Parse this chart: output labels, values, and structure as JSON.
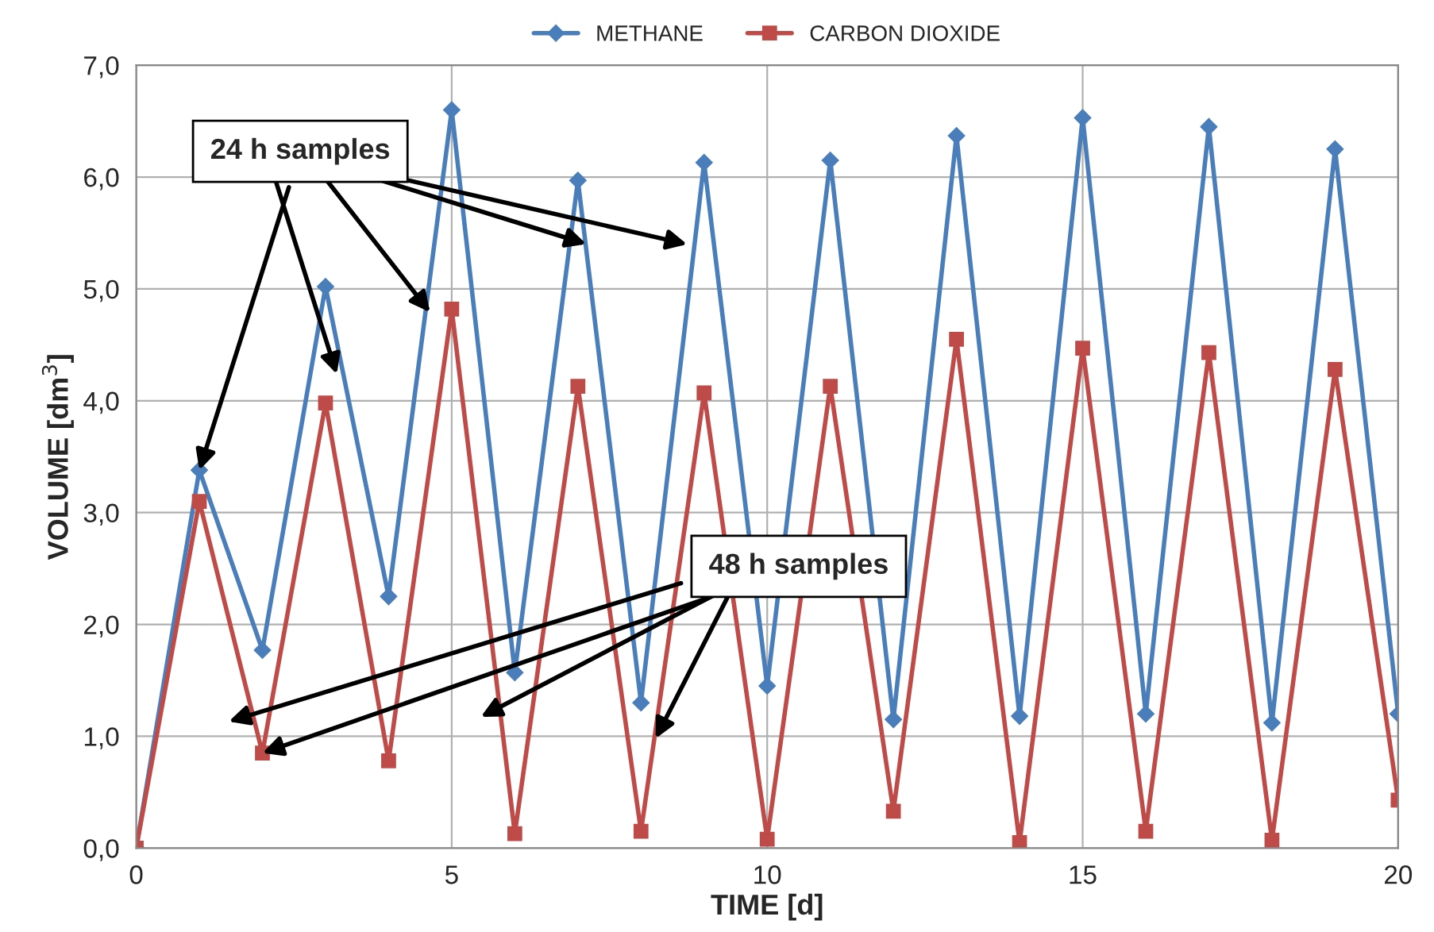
{
  "chart_data": {
    "type": "line",
    "xlabel": "TIME [d]",
    "ylabel": "VOLUME [dm$^{3}$]",
    "x": [
      0,
      1,
      2,
      3,
      4,
      5,
      6,
      7,
      8,
      9,
      10,
      11,
      12,
      13,
      14,
      15,
      16,
      17,
      18,
      19,
      20
    ],
    "series": [
      {
        "name": "METHANE",
        "color": "#4a7ebb",
        "marker": "diamond",
        "values": [
          0,
          3.38,
          1.77,
          5.02,
          2.25,
          6.6,
          1.57,
          5.97,
          1.3,
          6.13,
          1.45,
          6.15,
          1.15,
          6.37,
          1.18,
          6.53,
          1.2,
          6.45,
          1.12,
          6.25,
          1.2
        ]
      },
      {
        "name": "CARBON DIOXIDE",
        "color": "#be4b48",
        "marker": "square",
        "values": [
          0,
          3.1,
          0.85,
          3.98,
          0.78,
          4.82,
          0.13,
          4.13,
          0.15,
          4.07,
          0.08,
          4.13,
          0.33,
          4.55,
          0.05,
          4.47,
          0.15,
          4.43,
          0.07,
          4.28,
          0.43
        ]
      }
    ],
    "xlim": [
      0,
      20
    ],
    "xticks": [
      0,
      5,
      10,
      15,
      20
    ],
    "ylim": [
      0,
      7
    ],
    "yticks": [
      {
        "value": 0,
        "label": "0,0"
      },
      {
        "value": 1,
        "label": "1,0"
      },
      {
        "value": 2,
        "label": "2,0"
      },
      {
        "value": 3,
        "label": "3,0"
      },
      {
        "value": 4,
        "label": "4,0"
      },
      {
        "value": 5,
        "label": "5,0"
      },
      {
        "value": 6,
        "label": "6,0"
      },
      {
        "value": 7,
        "label": "7,0"
      }
    ],
    "grid": true,
    "legend": "top",
    "line_style": "solid",
    "annotations": [
      {
        "text": "24 h samples",
        "x": 1,
        "y": 3.38
      },
      {
        "text": "48 h samples",
        "x": 2,
        "y": 0.85
      }
    ]
  }
}
